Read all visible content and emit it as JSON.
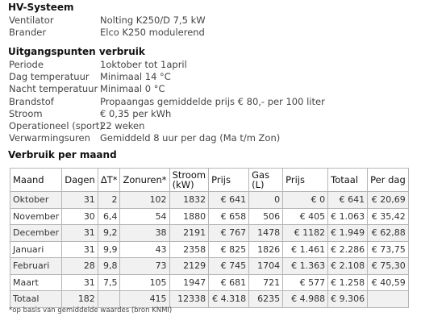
{
  "hv": {
    "title": "HV-Systeem",
    "rows": [
      {
        "label": "Ventilator",
        "value": "Nolting K250/D 7,5 kW"
      },
      {
        "label": "Brander",
        "value": "Elco K250 modulerend"
      }
    ]
  },
  "uitgangspunten": {
    "title": "Uitgangspunten verbruik",
    "rows": [
      {
        "label": "Periode",
        "value": "1oktober tot 1april"
      },
      {
        "label": "Dag temperatuur",
        "value": "Minimaal 14 °C"
      },
      {
        "label": "Nacht temperatuur",
        "value": "Minimaal 0 °C"
      },
      {
        "label": "Brandstof",
        "value": "Propaangas gemiddelde prijs € 80,- per 100 liter"
      },
      {
        "label": "Stroom",
        "value": "€ 0,35 per kWh"
      },
      {
        "label": "Operationeel (sport)",
        "value": "22 weken"
      },
      {
        "label": "Verwarmingsuren",
        "value": "Gemiddeld 8 uur per dag (Ma t/m Zon)"
      }
    ]
  },
  "verbruik": {
    "title": "Verbruik per maand",
    "headers": [
      "Maand",
      "Dagen",
      "ΔT*",
      "Zonuren*",
      "Stroom (kW)",
      "Prijs",
      "Gas (L)",
      "Prijs",
      "Totaal",
      "Per dag"
    ],
    "rows": [
      [
        "Oktober",
        "31",
        "2",
        "102",
        "1832",
        "€ 641",
        "0",
        "€ 0",
        "€ 641",
        "€ 20,69"
      ],
      [
        "November",
        "30",
        "6,4",
        "54",
        "1880",
        "€ 658",
        "506",
        "€ 405",
        "€ 1.063",
        "€ 35,42"
      ],
      [
        "December",
        "31",
        "9,2",
        "38",
        "2191",
        "€ 767",
        "1478",
        "€ 1182",
        "€ 1.949",
        "€ 62,88"
      ],
      [
        "Januari",
        "31",
        "9,9",
        "43",
        "2358",
        "€ 825",
        "1826",
        "€ 1.461",
        "€ 2.286",
        "€ 73,75"
      ],
      [
        "Februari",
        "28",
        "9,8",
        "73",
        "2129",
        "€ 745",
        "1704",
        "€ 1.363",
        "€ 2.108",
        "€ 75,30"
      ],
      [
        "Maart",
        "31",
        "7,5",
        "105",
        "1947",
        "€ 681",
        "721",
        "€ 577",
        "€ 1.258",
        "€ 40,59"
      ],
      [
        "Totaal",
        "182",
        "",
        "415",
        "12338",
        "€ 4.318",
        "6235",
        "€ 4.988",
        "€ 9.306",
        ""
      ]
    ],
    "footnote": "*op basis van gemiddelde waardes (bron KNMI)"
  }
}
